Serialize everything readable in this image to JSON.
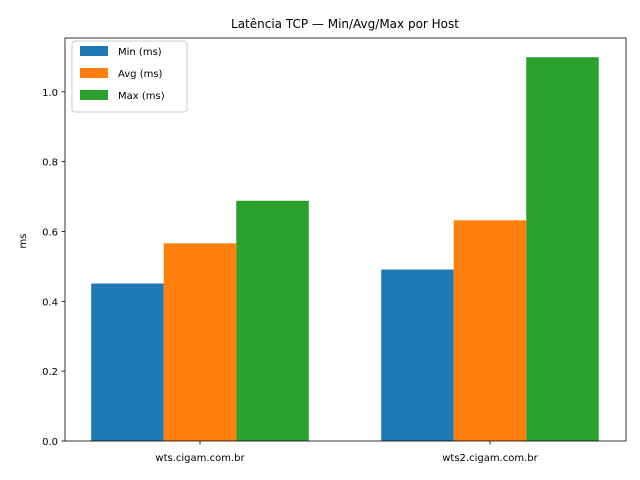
{
  "chart_data": {
    "type": "bar",
    "title": "Latência TCP — Min/Avg/Max por Host",
    "xlabel": "",
    "ylabel": "ms",
    "categories": [
      "wts.cigam.com.br",
      "wts2.cigam.com.br"
    ],
    "series": [
      {
        "name": "Min (ms)",
        "values": [
          0.451,
          0.491
        ],
        "color": "#1f77b4"
      },
      {
        "name": "Avg (ms)",
        "values": [
          0.566,
          0.632
        ],
        "color": "#ff7f0e"
      },
      {
        "name": "Max (ms)",
        "values": [
          0.688,
          1.099
        ],
        "color": "#2ca02c"
      }
    ],
    "ylim": [
      0,
      1.154
    ],
    "yticks": [
      "0.0",
      "0.2",
      "0.4",
      "0.6",
      "0.8",
      "1.0"
    ],
    "grid": false,
    "legend_position": "top-left"
  }
}
